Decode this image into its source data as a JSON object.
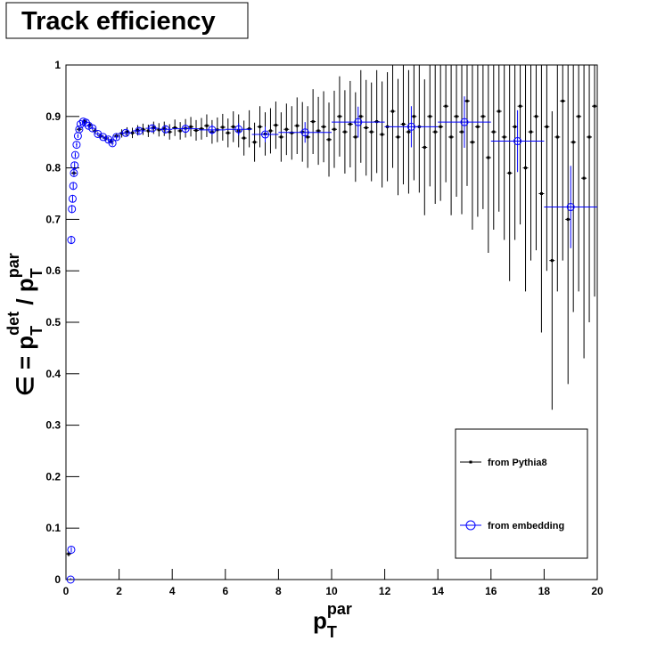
{
  "chart_data": {
    "type": "errorbar",
    "title": "Track efficiency",
    "x_label": [
      "p",
      "T",
      "par"
    ],
    "y_label": [
      "∈ = p",
      "T",
      "det",
      " / p",
      "T",
      "par"
    ],
    "xlim": [
      0,
      20
    ],
    "ylim": [
      0,
      1
    ],
    "xticks": [
      0,
      2,
      4,
      6,
      8,
      10,
      12,
      14,
      16,
      18,
      20
    ],
    "yticks": [
      0,
      0.1,
      0.2,
      0.3,
      0.4,
      0.5,
      0.6,
      0.7,
      0.8,
      0.9,
      1
    ],
    "legend": "bottom-right",
    "series": [
      {
        "name": "from Pythia8",
        "color": "#000000",
        "marker": "square",
        "x": [
          0.1,
          0.3,
          0.5,
          0.7,
          0.9,
          1.1,
          1.3,
          1.5,
          1.7,
          1.9,
          2.1,
          2.3,
          2.5,
          2.7,
          2.9,
          3.1,
          3.3,
          3.5,
          3.7,
          3.9,
          4.1,
          4.3,
          4.5,
          4.7,
          4.9,
          5.1,
          5.3,
          5.5,
          5.7,
          5.9,
          6.1,
          6.3,
          6.5,
          6.7,
          6.9,
          7.1,
          7.3,
          7.5,
          7.7,
          7.9,
          8.1,
          8.3,
          8.5,
          8.7,
          8.9,
          9.1,
          9.3,
          9.5,
          9.7,
          9.9,
          10.1,
          10.3,
          10.5,
          10.7,
          10.9,
          11.1,
          11.3,
          11.5,
          11.7,
          11.9,
          12.1,
          12.3,
          12.5,
          12.7,
          12.9,
          13.1,
          13.3,
          13.5,
          13.7,
          13.9,
          14.1,
          14.3,
          14.5,
          14.7,
          14.9,
          15.1,
          15.3,
          15.5,
          15.7,
          15.9,
          16.1,
          16.3,
          16.5,
          16.7,
          16.9,
          17.1,
          17.3,
          17.5,
          17.7,
          17.9,
          18.1,
          18.3,
          18.5,
          18.7,
          18.9,
          19.1,
          19.3,
          19.5,
          19.7,
          19.9
        ],
        "xerr": 0.1,
        "values": [
          0.05,
          0.79,
          0.875,
          0.89,
          0.883,
          0.872,
          0.862,
          0.858,
          0.852,
          0.862,
          0.867,
          0.87,
          0.868,
          0.873,
          0.875,
          0.872,
          0.878,
          0.874,
          0.876,
          0.87,
          0.878,
          0.872,
          0.877,
          0.88,
          0.873,
          0.876,
          0.882,
          0.87,
          0.874,
          0.879,
          0.868,
          0.88,
          0.872,
          0.858,
          0.876,
          0.85,
          0.88,
          0.866,
          0.872,
          0.883,
          0.86,
          0.875,
          0.868,
          0.882,
          0.87,
          0.86,
          0.89,
          0.872,
          0.88,
          0.855,
          0.875,
          0.9,
          0.87,
          0.885,
          0.86,
          0.9,
          0.878,
          0.87,
          0.89,
          0.865,
          0.88,
          0.91,
          0.86,
          0.885,
          0.87,
          0.9,
          0.88,
          0.84,
          0.9,
          0.87,
          0.88,
          0.92,
          0.86,
          0.9,
          0.87,
          0.93,
          0.85,
          0.88,
          0.9,
          0.82,
          0.87,
          0.91,
          0.86,
          0.79,
          0.88,
          0.92,
          0.8,
          0.87,
          0.9,
          0.75,
          0.88,
          0.62,
          0.86,
          0.93,
          0.7,
          0.85,
          0.9,
          0.78,
          0.86,
          0.92
        ],
        "errors": [
          0.005,
          0.005,
          0.005,
          0.005,
          0.005,
          0.005,
          0.005,
          0.005,
          0.005,
          0.005,
          0.008,
          0.009,
          0.01,
          0.01,
          0.011,
          0.012,
          0.012,
          0.013,
          0.014,
          0.015,
          0.016,
          0.017,
          0.018,
          0.019,
          0.02,
          0.021,
          0.022,
          0.023,
          0.024,
          0.026,
          0.028,
          0.03,
          0.032,
          0.034,
          0.036,
          0.038,
          0.04,
          0.042,
          0.044,
          0.046,
          0.048,
          0.05,
          0.052,
          0.055,
          0.058,
          0.06,
          0.063,
          0.066,
          0.069,
          0.072,
          0.075,
          0.078,
          0.081,
          0.084,
          0.087,
          0.09,
          0.093,
          0.096,
          0.1,
          0.103,
          0.106,
          0.11,
          0.113,
          0.117,
          0.12,
          0.124,
          0.128,
          0.132,
          0.136,
          0.14,
          0.144,
          0.148,
          0.152,
          0.156,
          0.16,
          0.165,
          0.17,
          0.175,
          0.18,
          0.185,
          0.19,
          0.195,
          0.2,
          0.21,
          0.22,
          0.23,
          0.24,
          0.25,
          0.26,
          0.27,
          0.28,
          0.29,
          0.3,
          0.31,
          0.32,
          0.33,
          0.34,
          0.35,
          0.36,
          0.37
        ]
      },
      {
        "name": "from embedding",
        "color": "#0000ff",
        "marker": "open-circle",
        "x": [
          0.175,
          0.2,
          0.2,
          0.225,
          0.25,
          0.275,
          0.3,
          0.325,
          0.35,
          0.4,
          0.45,
          0.5,
          0.55,
          0.65,
          0.75,
          0.85,
          1.0,
          1.2,
          1.4,
          1.6,
          1.75,
          1.9,
          2.25,
          2.75,
          3.25,
          3.75,
          4.5,
          5.5,
          6.5,
          7.5,
          9,
          11,
          13,
          15,
          17,
          19
        ],
        "xerr": [
          0.0125,
          0.0125,
          0.0125,
          0.0125,
          0.0125,
          0.0125,
          0.0125,
          0.0125,
          0.025,
          0.025,
          0.025,
          0.025,
          0.025,
          0.05,
          0.05,
          0.05,
          0.1,
          0.1,
          0.1,
          0.1,
          0.05,
          0.1,
          0.25,
          0.25,
          0.25,
          0.25,
          0.5,
          0.5,
          0.5,
          0.5,
          1,
          1,
          1,
          1,
          1,
          1
        ],
        "values": [
          0,
          0.058,
          0.66,
          0.72,
          0.74,
          0.765,
          0.79,
          0.805,
          0.825,
          0.845,
          0.862,
          0.875,
          0.885,
          0.89,
          0.888,
          0.882,
          0.877,
          0.866,
          0.86,
          0.855,
          0.848,
          0.86,
          0.868,
          0.872,
          0.877,
          0.875,
          0.876,
          0.874,
          0.875,
          0.865,
          0.869,
          0.889,
          0.88,
          0.889,
          0.852,
          0.724
        ],
        "errors": [
          0.003,
          0.005,
          0.008,
          0.008,
          0.007,
          0.007,
          0.006,
          0.006,
          0.005,
          0.005,
          0.004,
          0.004,
          0.004,
          0.004,
          0.004,
          0.004,
          0.004,
          0.004,
          0.004,
          0.005,
          0.005,
          0.005,
          0.005,
          0.006,
          0.007,
          0.008,
          0.008,
          0.01,
          0.012,
          0.015,
          0.02,
          0.03,
          0.04,
          0.05,
          0.06,
          0.08
        ]
      }
    ]
  }
}
